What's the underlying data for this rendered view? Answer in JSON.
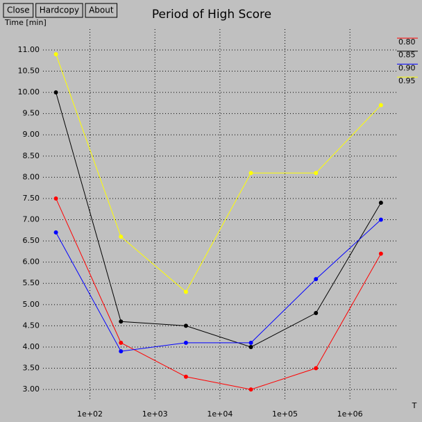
{
  "buttons": [
    "Close",
    "Hardcopy",
    "About"
  ],
  "chart_data": {
    "type": "line",
    "title": "Period of High Score",
    "ylabel": "Time [min]",
    "xlabel": "T",
    "x": [
      30,
      300,
      3000,
      30000,
      300000,
      3000000
    ],
    "xscale": "log",
    "xlim": [
      19,
      5300000
    ],
    "xticks": [
      {
        "value": 100,
        "label": "1e+02"
      },
      {
        "value": 1000,
        "label": "1e+03"
      },
      {
        "value": 10000,
        "label": "1e+04"
      },
      {
        "value": 100000,
        "label": "1e+05"
      },
      {
        "value": 1000000,
        "label": "1e+06"
      }
    ],
    "ylim": [
      2.74,
      11.49
    ],
    "yticks": [
      {
        "value": 3,
        "label": "3.00"
      },
      {
        "value": 3.5,
        "label": "3.50"
      },
      {
        "value": 4,
        "label": "4.00"
      },
      {
        "value": 4.5,
        "label": "4.50"
      },
      {
        "value": 5,
        "label": "5.00"
      },
      {
        "value": 5.5,
        "label": "5.50"
      },
      {
        "value": 6,
        "label": "6.00"
      },
      {
        "value": 6.5,
        "label": "6.50"
      },
      {
        "value": 7,
        "label": "7.00"
      },
      {
        "value": 7.5,
        "label": "7.50"
      },
      {
        "value": 8,
        "label": "8.00"
      },
      {
        "value": 8.5,
        "label": "8.50"
      },
      {
        "value": 9,
        "label": "9.00"
      },
      {
        "value": 9.5,
        "label": "9.50"
      },
      {
        "value": 10,
        "label": "10.00"
      },
      {
        "value": 10.5,
        "label": "10.50"
      },
      {
        "value": 11,
        "label": "11.00"
      }
    ],
    "grid": true,
    "legend": "right",
    "series": [
      {
        "name": "0.80",
        "color": "#ff0000",
        "values": [
          7.5,
          4.1,
          3.3,
          3.0,
          3.5,
          6.2
        ]
      },
      {
        "name": "0.85",
        "color": "#000000",
        "values": [
          10.0,
          4.6,
          4.5,
          4.0,
          4.8,
          7.4
        ]
      },
      {
        "name": "0.90",
        "color": "#0000ff",
        "values": [
          6.7,
          3.9,
          4.1,
          4.1,
          5.6,
          7.0
        ]
      },
      {
        "name": "0.95",
        "color": "#ffff00",
        "values": [
          10.9,
          6.6,
          5.3,
          8.1,
          8.1,
          9.7
        ]
      }
    ]
  }
}
